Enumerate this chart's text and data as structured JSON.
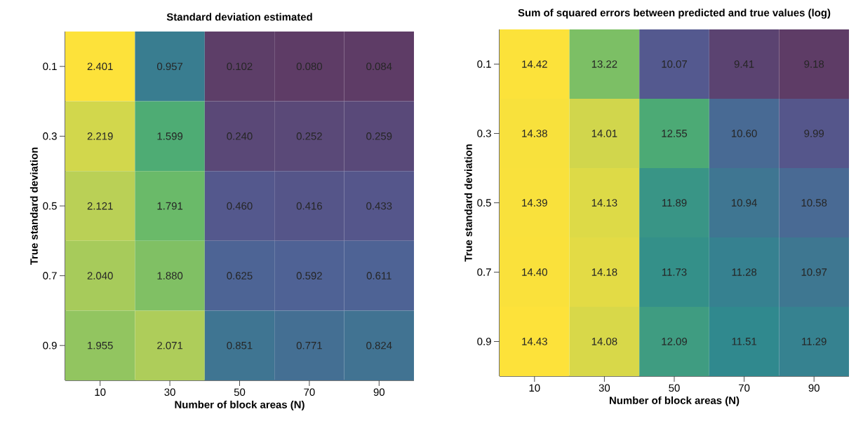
{
  "chart_data": [
    {
      "type": "heatmap",
      "title": "Standard deviation estimated",
      "xlabel": "Number of block areas (N)",
      "ylabel": "True standard deviation",
      "categories": [
        "10",
        "30",
        "50",
        "70",
        "90"
      ],
      "y_categories": [
        "0.1",
        "0.3",
        "0.5",
        "0.7",
        "0.9"
      ],
      "cells": [
        [
          2.401,
          0.957,
          0.102,
          0.08,
          0.084
        ],
        [
          2.219,
          1.599,
          0.24,
          0.252,
          0.259
        ],
        [
          2.121,
          1.791,
          0.46,
          0.416,
          0.433
        ],
        [
          2.04,
          1.88,
          0.625,
          0.592,
          0.611
        ],
        [
          1.955,
          2.071,
          0.851,
          0.771,
          0.824
        ]
      ],
      "cell_labels": [
        [
          "2.401",
          "0.957",
          "0.102",
          "0.080",
          "0.084"
        ],
        [
          "2.219",
          "1.599",
          "0.240",
          "0.252",
          "0.259"
        ],
        [
          "2.121",
          "1.791",
          "0.460",
          "0.416",
          "0.433"
        ],
        [
          "2.040",
          "1.880",
          "0.625",
          "0.592",
          "0.611"
        ],
        [
          "1.955",
          "2.071",
          "0.851",
          "0.771",
          "0.824"
        ]
      ]
    },
    {
      "type": "heatmap",
      "title": "Sum of squared errors between predicted and true values (log)",
      "xlabel": "Number of block areas (N)",
      "ylabel": "True standard deviation",
      "categories": [
        "10",
        "30",
        "50",
        "70",
        "90"
      ],
      "y_categories": [
        "0.1",
        "0.3",
        "0.5",
        "0.7",
        "0.9"
      ],
      "cells": [
        [
          14.42,
          13.22,
          10.07,
          9.41,
          9.18
        ],
        [
          14.38,
          14.01,
          12.55,
          10.6,
          9.99
        ],
        [
          14.39,
          14.13,
          11.89,
          10.94,
          10.58
        ],
        [
          14.4,
          14.18,
          11.73,
          11.28,
          10.97
        ],
        [
          14.43,
          14.08,
          12.09,
          11.51,
          11.29
        ]
      ],
      "cell_labels": [
        [
          "14.42",
          "13.22",
          "10.07",
          "9.41",
          "9.18"
        ],
        [
          "14.38",
          "14.01",
          "12.55",
          "10.60",
          "9.99"
        ],
        [
          "14.39",
          "14.13",
          "11.89",
          "10.94",
          "10.58"
        ],
        [
          "14.40",
          "14.18",
          "11.73",
          "11.28",
          "10.97"
        ],
        [
          "14.43",
          "14.08",
          "12.09",
          "11.51",
          "11.29"
        ]
      ]
    }
  ]
}
